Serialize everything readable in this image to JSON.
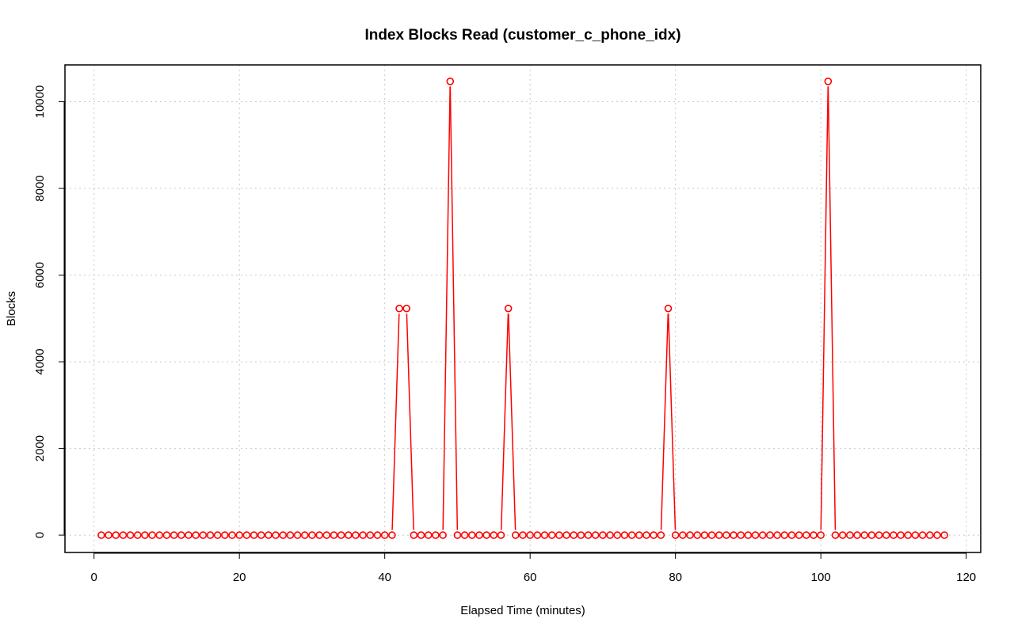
{
  "chart_data": {
    "type": "line",
    "title": "Index Blocks Read (customer_c_phone_idx)",
    "xlabel": "Elapsed Time (minutes)",
    "ylabel": "Blocks",
    "xlim": [
      -4,
      122
    ],
    "ylim": [
      -400,
      10850
    ],
    "xticks": [
      0,
      20,
      40,
      60,
      80,
      100,
      120
    ],
    "yticks": [
      0,
      2000,
      4000,
      6000,
      8000,
      10000
    ],
    "grid": true,
    "color": "#ff0000",
    "series": [
      {
        "x": [
          1,
          2,
          3,
          4,
          5,
          6,
          7,
          8,
          9,
          10,
          11,
          12,
          13,
          14,
          15,
          16,
          17,
          18,
          19,
          20,
          21,
          22,
          23,
          24,
          25,
          26,
          27,
          28,
          29,
          30,
          31,
          32,
          33,
          34,
          35,
          36,
          37,
          38,
          39,
          40,
          41,
          42,
          43,
          44,
          45,
          46,
          47,
          48,
          49,
          50,
          51,
          52,
          53,
          54,
          55,
          56,
          57,
          58,
          59,
          60,
          61,
          62,
          63,
          64,
          65,
          66,
          67,
          68,
          69,
          70,
          71,
          72,
          73,
          74,
          75,
          76,
          77,
          78,
          79,
          80,
          81,
          82,
          83,
          84,
          85,
          86,
          87,
          88,
          89,
          90,
          91,
          92,
          93,
          94,
          95,
          96,
          97,
          98,
          99,
          100,
          101,
          102,
          103,
          104,
          105,
          106,
          107,
          108,
          109,
          110,
          111,
          112,
          113,
          114,
          115,
          116,
          117
        ],
        "values": [
          0,
          0,
          0,
          0,
          0,
          0,
          0,
          0,
          0,
          0,
          0,
          0,
          0,
          0,
          0,
          0,
          0,
          0,
          0,
          0,
          0,
          0,
          0,
          0,
          0,
          0,
          0,
          0,
          0,
          0,
          0,
          0,
          0,
          0,
          0,
          0,
          0,
          0,
          0,
          0,
          0,
          5230,
          5230,
          0,
          0,
          0,
          0,
          0,
          10470,
          0,
          0,
          0,
          0,
          0,
          0,
          0,
          5230,
          0,
          0,
          0,
          0,
          0,
          0,
          0,
          0,
          0,
          0,
          0,
          0,
          0,
          0,
          0,
          0,
          0,
          0,
          0,
          0,
          0,
          5230,
          0,
          0,
          0,
          0,
          0,
          0,
          0,
          0,
          0,
          0,
          0,
          0,
          0,
          0,
          0,
          0,
          0,
          0,
          0,
          0,
          0,
          10470,
          0,
          0,
          0,
          0,
          0,
          0,
          0,
          0,
          0,
          0,
          0,
          0,
          0,
          0,
          0,
          0
        ]
      }
    ]
  }
}
